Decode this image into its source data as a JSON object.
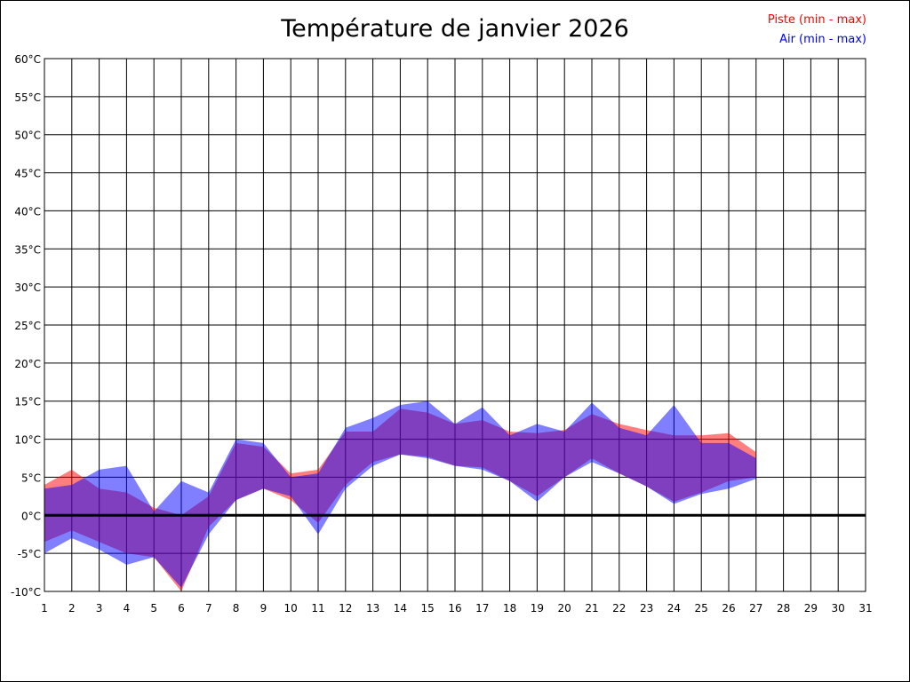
{
  "chart_data": {
    "type": "area",
    "title": "Température de janvier 2026",
    "xlabel": "",
    "ylabel": "",
    "x": [
      1,
      2,
      3,
      4,
      5,
      6,
      7,
      8,
      9,
      10,
      11,
      12,
      13,
      14,
      15,
      16,
      17,
      18,
      19,
      20,
      21,
      22,
      23,
      24,
      25,
      26,
      27
    ],
    "xlim": [
      1,
      31
    ],
    "ylim": [
      -10,
      60
    ],
    "x_ticks": [
      "1",
      "2",
      "3",
      "4",
      "5",
      "6",
      "7",
      "8",
      "9",
      "10",
      "11",
      "12",
      "13",
      "14",
      "15",
      "16",
      "17",
      "18",
      "19",
      "20",
      "21",
      "22",
      "23",
      "24",
      "25",
      "26",
      "27",
      "28",
      "29",
      "30",
      "31"
    ],
    "y_ticks": [
      "-10°C",
      "-5°C",
      "0°C",
      "5°C",
      "10°C",
      "15°C",
      "20°C",
      "25°C",
      "30°C",
      "35°C",
      "40°C",
      "45°C",
      "50°C",
      "55°C",
      "60°C"
    ],
    "y_tick_values": [
      -10,
      -5,
      0,
      5,
      10,
      15,
      20,
      25,
      30,
      35,
      40,
      45,
      50,
      55,
      60
    ],
    "grid": true,
    "legend_position": "top-right",
    "series": [
      {
        "name": "Piste (min - max)",
        "color": "#ff0000",
        "min": [
          -3.5,
          -2.0,
          -3.5,
          -5.0,
          -5.5,
          -10.0,
          -1.5,
          2.0,
          3.5,
          2.0,
          -1.0,
          4.0,
          7.0,
          8.0,
          7.7,
          6.5,
          6.3,
          4.5,
          2.5,
          5.0,
          7.5,
          5.5,
          3.8,
          1.8,
          3.0,
          4.5,
          5.0
        ],
        "max": [
          4.0,
          6.0,
          3.5,
          3.0,
          1.0,
          0.0,
          2.5,
          9.5,
          9.0,
          5.5,
          6.0,
          11.0,
          11.0,
          14.0,
          13.5,
          12.0,
          12.5,
          11.0,
          10.8,
          11.2,
          13.3,
          12.0,
          11.2,
          10.5,
          10.5,
          10.8,
          8.3
        ]
      },
      {
        "name": "Air (min - max)",
        "color": "#0000ff",
        "min": [
          -5.0,
          -3.0,
          -4.5,
          -6.5,
          -5.5,
          -9.5,
          -2.5,
          2.0,
          3.5,
          2.5,
          -2.5,
          3.5,
          6.5,
          8.0,
          7.5,
          6.5,
          6.0,
          4.5,
          1.8,
          5.0,
          7.0,
          5.5,
          3.8,
          1.5,
          2.8,
          3.5,
          4.8
        ],
        "max": [
          3.5,
          4.0,
          6.0,
          6.5,
          0.5,
          4.5,
          3.0,
          10.0,
          9.5,
          5.0,
          5.5,
          11.5,
          12.8,
          14.5,
          15.0,
          12.0,
          14.2,
          10.5,
          12.0,
          11.0,
          14.8,
          11.5,
          10.5,
          14.5,
          9.5,
          9.5,
          7.5
        ]
      }
    ],
    "legend": [
      {
        "label": "Piste (min - max)",
        "color": "#ff0000"
      },
      {
        "label": "Air (min - max)",
        "color": "#0000ff"
      }
    ]
  }
}
